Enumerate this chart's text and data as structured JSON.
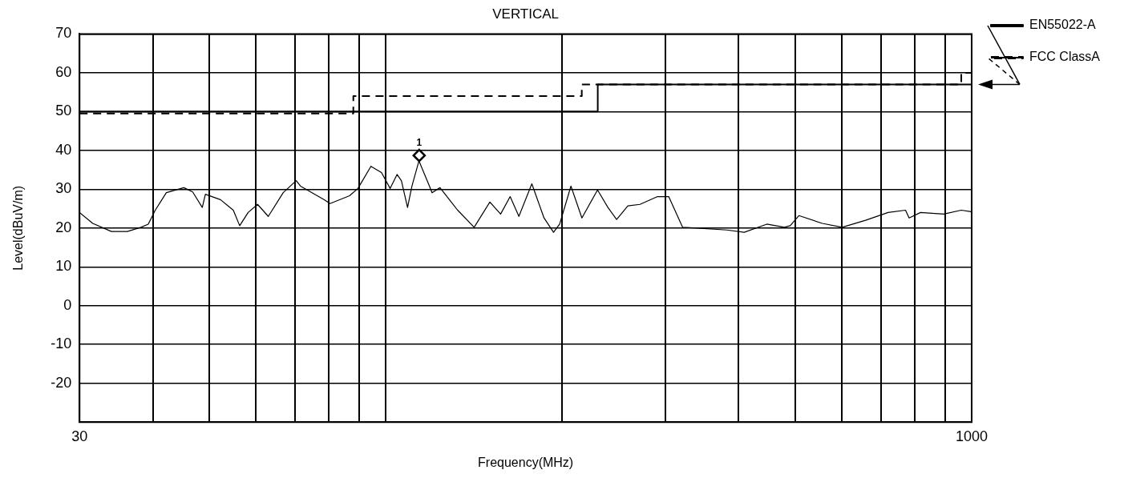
{
  "chart_data": {
    "type": "line",
    "title": "VERTICAL",
    "xlabel": "Frequency(MHz)",
    "ylabel": "Level(dBuV/m)",
    "log": "x",
    "xlim": [
      30,
      1000
    ],
    "ylim": [
      -30,
      70
    ],
    "xticks": [
      30,
      {
        "value": 40,
        "label": null
      },
      {
        "value": 50,
        "label": null
      },
      {
        "value": 60,
        "label": null
      },
      {
        "value": 70,
        "label": null
      },
      {
        "value": 80,
        "label": null
      },
      {
        "value": 90,
        "label": null
      },
      {
        "value": 100,
        "label": null
      },
      {
        "value": 200,
        "label": null
      },
      {
        "value": 300,
        "label": null
      },
      {
        "value": 400,
        "label": null
      },
      {
        "value": 500,
        "label": null
      },
      {
        "value": 600,
        "label": null
      },
      {
        "value": 700,
        "label": null
      },
      {
        "value": 800,
        "label": null
      },
      {
        "value": 900,
        "label": null
      },
      1000
    ],
    "yticks": [
      -20,
      -10,
      0,
      10,
      20,
      30,
      40,
      50,
      60,
      70
    ],
    "grid": true,
    "legend": "right",
    "marker": "none",
    "series": [
      {
        "color": "#000000",
        "line_style": "solid",
        "x": [
          30,
          31.6,
          34.0,
          36.2,
          38.2,
          39.3,
          40.4,
          42.2,
          45.2,
          46.8,
          48.6,
          49.2,
          52.2,
          54.9,
          56.3,
          58.2,
          60.4,
          63.0,
          66.8,
          70.3,
          71.5,
          78.5,
          80.3,
          86.7,
          89.6,
          94.3,
          98.3,
          101.7,
          104.5,
          106.3,
          108.9,
          110.8,
          113.9,
          118.7,
          119.9,
          123.7,
          132.6,
          141.5,
          150.5,
          157,
          163,
          168.7,
          177.5,
          186.2,
          193.3,
          198,
          207,
          216.1,
          229.8,
          239.4,
          247.7,
          258.9,
          271.5,
          290.9,
          304,
          321,
          340,
          382,
          409,
          447,
          479,
          490,
          507,
          556,
          601,
          659,
          720,
          771,
          782,
          818,
          896,
          960,
          998
        ],
        "values": [
          24.0,
          21.2,
          19.1,
          19.1,
          20.2,
          21.0,
          24.6,
          29.1,
          30.4,
          29.3,
          25.3,
          28.7,
          27.3,
          24.6,
          20.6,
          24.0,
          26.1,
          23.0,
          29.1,
          32.2,
          30.8,
          27.3,
          26.3,
          28.3,
          30.2,
          35.9,
          34.3,
          30.2,
          33.8,
          32.2,
          25.3,
          30.8,
          37.3,
          30.8,
          29.1,
          30.4,
          24.6,
          20.2,
          26.7,
          23.6,
          28.1,
          23.0,
          31.4,
          22.6,
          18.9,
          21.0,
          30.8,
          22.6,
          29.8,
          25.3,
          22.2,
          25.7,
          26.1,
          28.1,
          28.1,
          20.2,
          20.0,
          19.5,
          18.9,
          21.0,
          20.2,
          20.6,
          23.2,
          21.2,
          20.2,
          22.0,
          24.0,
          24.6,
          22.6,
          24.0,
          23.6,
          24.6,
          24.2
        ]
      },
      {
        "type": "step",
        "name": "EN55022-A",
        "color": "#000000",
        "line_style": "solid",
        "x": [
          30,
          230,
          1000
        ],
        "values": [
          50,
          57,
          57
        ]
      },
      {
        "type": "step",
        "name": "FCC ClassA",
        "color": "#000000",
        "line_style": "dashed",
        "x": [
          30,
          88,
          216,
          960,
          1000
        ],
        "values": [
          49.5,
          54,
          57,
          60,
          60
        ]
      },
      {
        "type": "scatter",
        "color": "#000000",
        "marker": "diamond",
        "x": [
          114
        ],
        "values": [
          38.7
        ]
      }
    ],
    "annotations": [
      {
        "text": "1",
        "x": 114,
        "y": 38.7
      }
    ]
  }
}
